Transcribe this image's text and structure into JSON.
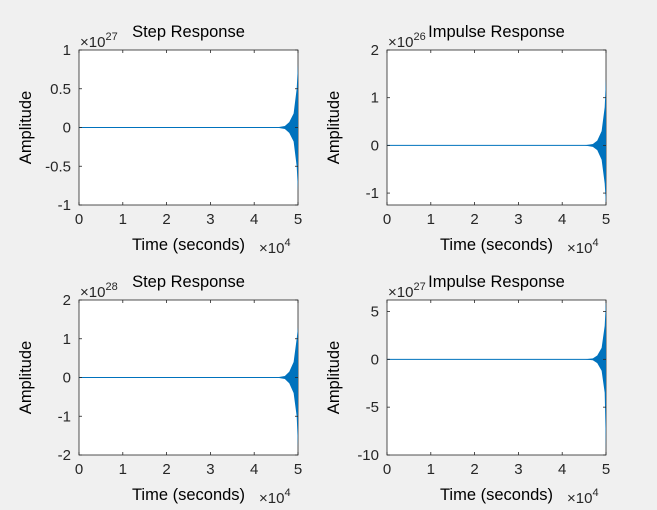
{
  "figure": {
    "background": "#f0f0f0",
    "axes_background": "#ffffff",
    "axes_color": "#262626",
    "series_color": "#0072bd"
  },
  "chart_data": [
    {
      "type": "line",
      "title": "Step Response",
      "xlabel": "Time (seconds)",
      "ylabel": "Amplitude",
      "x_exponent": "×10",
      "x_exponent_power": "4",
      "y_exponent": "×10",
      "y_exponent_power": "27",
      "xlim": [
        0,
        5
      ],
      "ylim": [
        -1,
        1
      ],
      "xticks": [
        "0",
        "1",
        "2",
        "3",
        "4",
        "5"
      ],
      "yticks": [
        "-1",
        "-0.5",
        "0",
        "0.5",
        "1"
      ],
      "ytick_values": [
        -1,
        -0.5,
        0,
        0.5,
        1
      ],
      "grid": false,
      "series": [
        {
          "x": [
            0,
            4.5,
            4.7,
            4.8,
            4.9,
            4.97,
            5.0
          ],
          "y_max": [
            0,
            0,
            0.02,
            0.07,
            0.18,
            0.5,
            0.82
          ],
          "y_min": [
            0,
            0,
            -0.02,
            -0.07,
            -0.18,
            -0.5,
            -0.82
          ]
        }
      ]
    },
    {
      "type": "line",
      "title": "Impulse Response",
      "xlabel": "Time (seconds)",
      "ylabel": "Amplitude",
      "x_exponent": "×10",
      "x_exponent_power": "4",
      "y_exponent": "×10",
      "y_exponent_power": "26",
      "xlim": [
        0,
        5
      ],
      "ylim": [
        -1.25,
        2
      ],
      "xticks": [
        "0",
        "1",
        "2",
        "3",
        "4",
        "5"
      ],
      "yticks": [
        "-1",
        "0",
        "1",
        "2"
      ],
      "ytick_values": [
        -1,
        0,
        1,
        2
      ],
      "grid": false,
      "series": [
        {
          "x": [
            0,
            4.5,
            4.7,
            4.8,
            4.9,
            4.97,
            5.0
          ],
          "y_max": [
            0,
            0,
            0.03,
            0.1,
            0.3,
            0.8,
            1.4
          ],
          "y_min": [
            0,
            0,
            -0.03,
            -0.1,
            -0.3,
            -0.8,
            -1.25
          ]
        }
      ]
    },
    {
      "type": "line",
      "title": "Step Response",
      "xlabel": "Time (seconds)",
      "ylabel": "Amplitude",
      "x_exponent": "×10",
      "x_exponent_power": "4",
      "y_exponent": "×10",
      "y_exponent_power": "28",
      "xlim": [
        0,
        5
      ],
      "ylim": [
        -2,
        2
      ],
      "xticks": [
        "0",
        "1",
        "2",
        "3",
        "4",
        "5"
      ],
      "yticks": [
        "-2",
        "-1",
        "0",
        "1",
        "2"
      ],
      "ytick_values": [
        -2,
        -1,
        0,
        1,
        2
      ],
      "grid": false,
      "series": [
        {
          "x": [
            0,
            4.5,
            4.7,
            4.8,
            4.9,
            4.97,
            5.0
          ],
          "y_max": [
            0,
            0,
            0.04,
            0.15,
            0.4,
            1.0,
            1.3
          ],
          "y_min": [
            0,
            0,
            -0.04,
            -0.15,
            -0.4,
            -1.0,
            -1.8
          ]
        }
      ]
    },
    {
      "type": "line",
      "title": "Impulse Response",
      "xlabel": "Time (seconds)",
      "ylabel": "Amplitude",
      "x_exponent": "×10",
      "x_exponent_power": "4",
      "y_exponent": "×10",
      "y_exponent_power": "27",
      "xlim": [
        0,
        5
      ],
      "ylim": [
        -10,
        6.2
      ],
      "xticks": [
        "0",
        "1",
        "2",
        "3",
        "4",
        "5"
      ],
      "yticks": [
        "-10",
        "-5",
        "0",
        "5"
      ],
      "ytick_values": [
        -10,
        -5,
        0,
        5
      ],
      "grid": false,
      "series": [
        {
          "x": [
            0,
            4.5,
            4.7,
            4.8,
            4.9,
            4.97,
            5.0
          ],
          "y_max": [
            0,
            0,
            0.1,
            0.4,
            1.2,
            3.5,
            6.2
          ],
          "y_min": [
            0,
            0,
            -0.1,
            -0.4,
            -1.2,
            -3.5,
            -9.5
          ]
        }
      ]
    }
  ]
}
